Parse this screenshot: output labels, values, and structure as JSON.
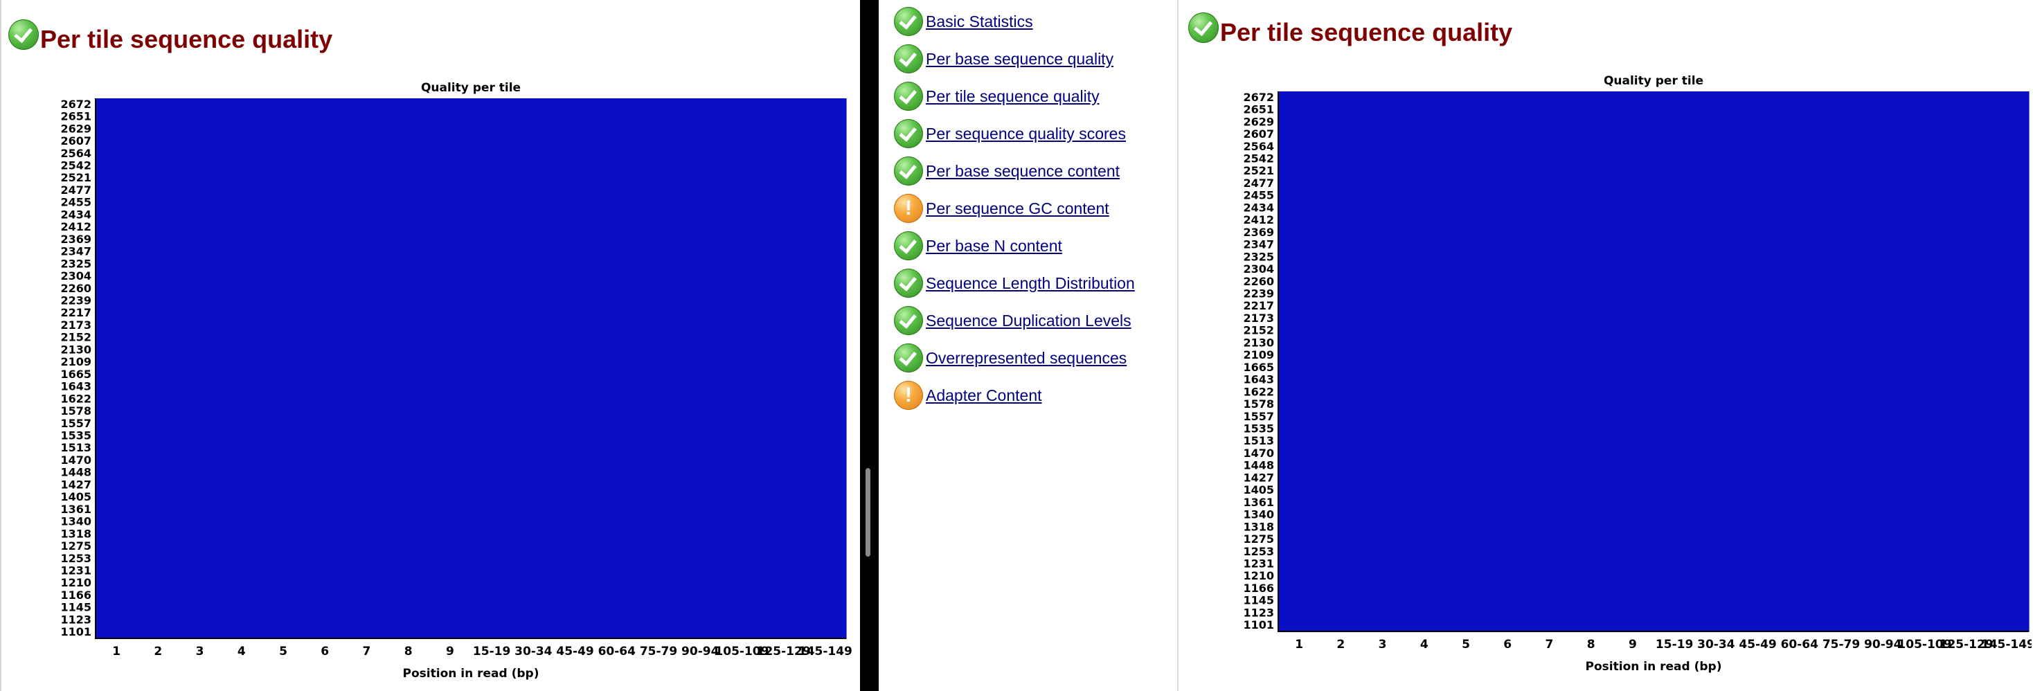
{
  "left_report": {
    "title": "Per tile sequence quality",
    "status_icon": "check-circle-icon"
  },
  "right_report": {
    "title": "Per tile sequence quality",
    "status_icon": "check-circle-icon"
  },
  "nav": {
    "items": [
      {
        "label": "Basic Statistics",
        "status": "pass"
      },
      {
        "label": "Per base sequence quality",
        "status": "pass"
      },
      {
        "label": "Per tile sequence quality",
        "status": "pass"
      },
      {
        "label": "Per sequence quality scores",
        "status": "pass"
      },
      {
        "label": "Per base sequence content",
        "status": "pass"
      },
      {
        "label": "Per sequence GC content",
        "status": "warn"
      },
      {
        "label": "Per base N content",
        "status": "pass"
      },
      {
        "label": "Sequence Length Distribution",
        "status": "pass"
      },
      {
        "label": "Sequence Duplication Levels",
        "status": "pass"
      },
      {
        "label": "Overrepresented sequences",
        "status": "pass"
      },
      {
        "label": "Adapter Content",
        "status": "warn"
      }
    ]
  },
  "colors": {
    "title": "#7f0000",
    "link": "#000080",
    "heatmap_fill": "#0a0fc4",
    "pass": "#3a9a2a",
    "warn": "#f29a2e"
  },
  "chart_data": [
    {
      "type": "heatmap",
      "title": "Quality per tile",
      "xlabel": "Position in read (bp)",
      "ylabel": "",
      "x_categories": [
        "1",
        "2",
        "3",
        "4",
        "5",
        "6",
        "7",
        "8",
        "9",
        "15-19",
        "30-34",
        "45-49",
        "60-64",
        "75-79",
        "90-94",
        "105-109",
        "125-129",
        "145-149"
      ],
      "y_categories": [
        "2672",
        "2651",
        "2629",
        "2607",
        "2564",
        "2542",
        "2521",
        "2477",
        "2455",
        "2434",
        "2412",
        "2369",
        "2347",
        "2325",
        "2304",
        "2260",
        "2239",
        "2217",
        "2173",
        "2152",
        "2130",
        "2109",
        "1665",
        "1643",
        "1622",
        "1578",
        "1557",
        "1535",
        "1513",
        "1470",
        "1448",
        "1427",
        "1405",
        "1361",
        "1340",
        "1318",
        "1275",
        "1253",
        "1231",
        "1210",
        "1166",
        "1145",
        "1123",
        "1101"
      ],
      "value_note": "uniform",
      "fill_color": "#0a0fc4"
    },
    {
      "type": "heatmap",
      "title": "Quality per tile",
      "xlabel": "Position in read (bp)",
      "ylabel": "",
      "x_categories": [
        "1",
        "2",
        "3",
        "4",
        "5",
        "6",
        "7",
        "8",
        "9",
        "15-19",
        "30-34",
        "45-49",
        "60-64",
        "75-79",
        "90-94",
        "105-109",
        "125-129",
        "145-149"
      ],
      "y_categories": [
        "2672",
        "2651",
        "2629",
        "2607",
        "2564",
        "2542",
        "2521",
        "2477",
        "2455",
        "2434",
        "2412",
        "2369",
        "2347",
        "2325",
        "2304",
        "2260",
        "2239",
        "2217",
        "2173",
        "2152",
        "2130",
        "2109",
        "1665",
        "1643",
        "1622",
        "1578",
        "1557",
        "1535",
        "1513",
        "1470",
        "1448",
        "1427",
        "1405",
        "1361",
        "1340",
        "1318",
        "1275",
        "1253",
        "1231",
        "1210",
        "1166",
        "1145",
        "1123",
        "1101"
      ],
      "value_note": "uniform",
      "fill_color": "#0a0fc4"
    }
  ]
}
